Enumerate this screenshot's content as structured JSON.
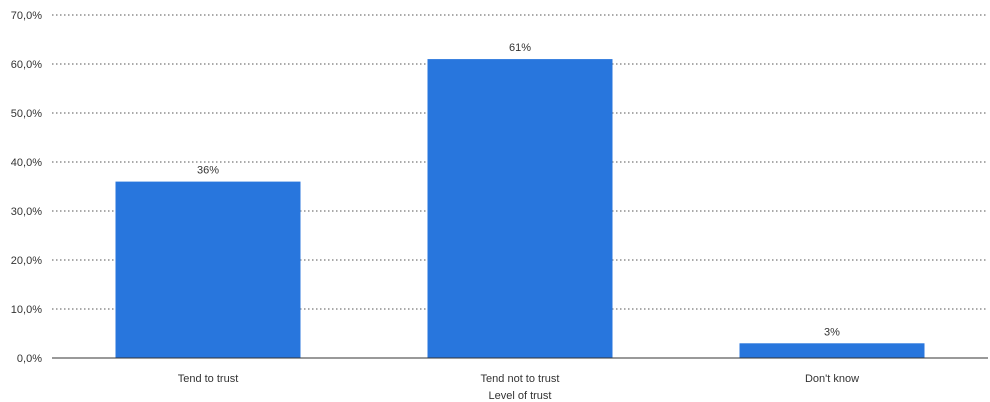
{
  "chart_data": {
    "type": "bar",
    "categories": [
      "Tend to trust",
      "Tend not to trust",
      "Don't know"
    ],
    "values": [
      36,
      61,
      3
    ],
    "value_labels": [
      "36%",
      "61%",
      "3%"
    ],
    "xlabel": "Level of trust",
    "ylabel": "",
    "ylim": [
      0,
      70
    ],
    "yticks": [
      0,
      10,
      20,
      30,
      40,
      50,
      60,
      70
    ],
    "ytick_labels": [
      "0,0%",
      "10,0%",
      "20,0%",
      "30,0%",
      "40,0%",
      "50,0%",
      "60,0%",
      "70,0%"
    ],
    "grid": true,
    "bar_color": "#2876dd"
  }
}
